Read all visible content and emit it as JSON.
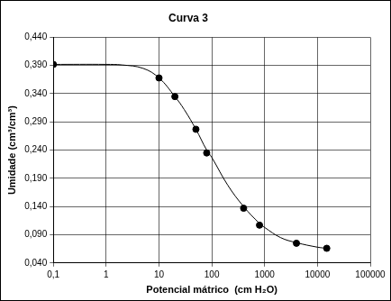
{
  "chart_data": {
    "type": "scatter",
    "title": "Curva 3",
    "x_label": "Potencial mátrico  (cm H₂O)",
    "y_label": "Umidade (cm³/cm³)",
    "log": "x",
    "grid": true,
    "xlim": [
      0.1,
      100000
    ],
    "xticks": [
      {
        "value": 0.1,
        "label": "0,1"
      },
      1,
      10,
      100,
      1000,
      10000,
      100000
    ],
    "ylim": [
      0.04,
      0.44
    ],
    "yticks": [
      {
        "value": 0.04,
        "label": "0,040"
      },
      {
        "value": 0.09,
        "label": "0,090"
      },
      {
        "value": 0.14,
        "label": "0,140"
      },
      {
        "value": 0.19,
        "label": "0,190"
      },
      {
        "value": 0.24,
        "label": "0,240"
      },
      {
        "value": 0.29,
        "label": "0,290"
      },
      {
        "value": 0.34,
        "label": "0,340"
      },
      {
        "value": 0.39,
        "label": "0,390"
      },
      {
        "value": 0.44,
        "label": "0,440"
      }
    ],
    "series": [
      {
        "type": "line",
        "line_style": "solid",
        "color": "#000000",
        "x": [
          0.1,
          1,
          2,
          5,
          10,
          20,
          30,
          50,
          80,
          100,
          200,
          400,
          800,
          1000,
          2000,
          4000,
          10000,
          15000
        ],
        "values": [
          0.392,
          0.392,
          0.391,
          0.385,
          0.368,
          0.335,
          0.312,
          0.277,
          0.24,
          0.227,
          0.178,
          0.14,
          0.11,
          0.103,
          0.085,
          0.076,
          0.068,
          0.066
        ]
      },
      {
        "type": "scatter",
        "marker": "circle",
        "color": "#000000",
        "x": [
          0.1,
          10,
          20,
          50,
          80,
          400,
          800,
          4000,
          15000
        ],
        "values": [
          0.392,
          0.368,
          0.335,
          0.277,
          0.235,
          0.137,
          0.107,
          0.075,
          0.066
        ]
      }
    ]
  }
}
